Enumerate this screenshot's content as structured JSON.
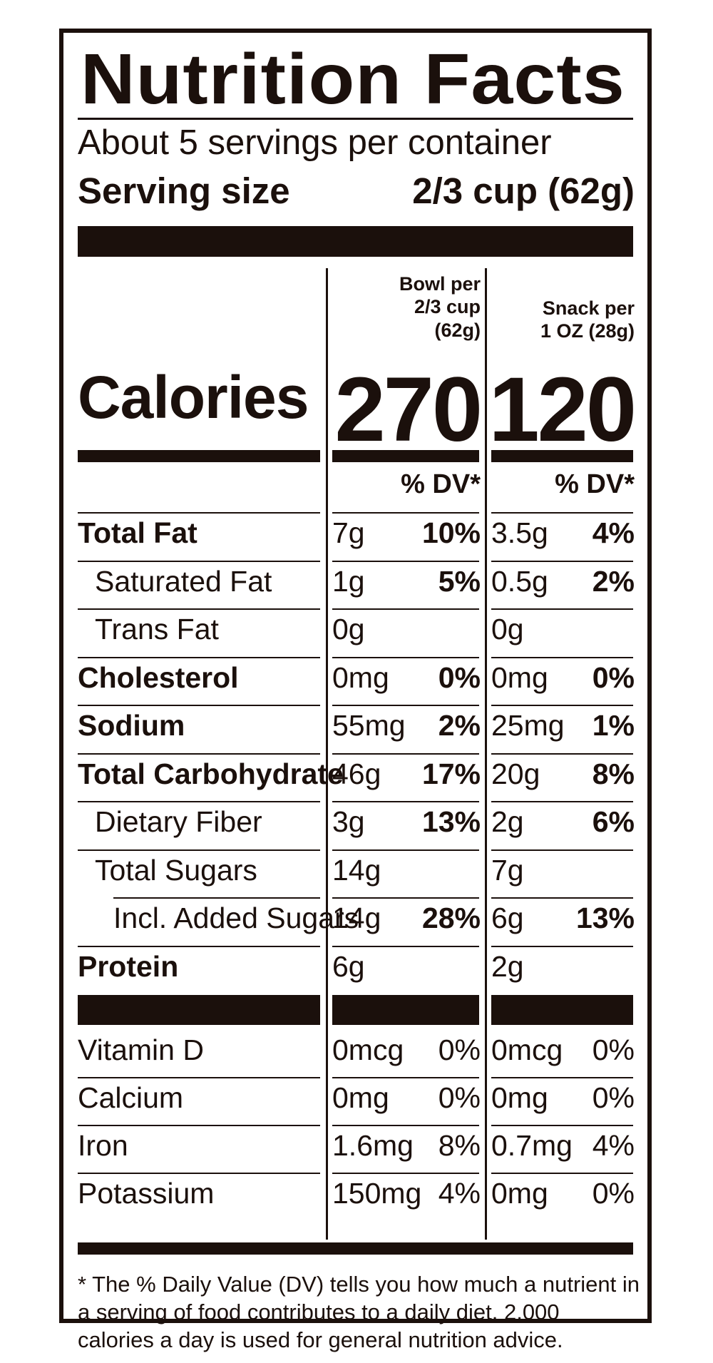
{
  "title": "Nutrition Facts",
  "servings_per_container": "About 5 servings per container",
  "serving_size_label": "Serving size",
  "serving_size_value": "2/3 cup (62g)",
  "columns": [
    {
      "header": [
        "Bowl per",
        "2/3 cup",
        "(62g)"
      ],
      "calories": "270",
      "dv_header": "% DV*"
    },
    {
      "header": [
        "Snack per",
        "1 OZ (28g)"
      ],
      "calories": "120",
      "dv_header": "% DV*"
    }
  ],
  "calories_label": "Calories",
  "nutrients": [
    {
      "name": "Total Fat",
      "bold": true,
      "indent": 0,
      "c1": [
        "7g",
        "10%"
      ],
      "c2": [
        "3.5g",
        "4%"
      ]
    },
    {
      "name": "Saturated Fat",
      "bold": false,
      "indent": 1,
      "c1": [
        "1g",
        "5%"
      ],
      "c2": [
        "0.5g",
        "2%"
      ]
    },
    {
      "name": "Trans Fat",
      "bold": false,
      "indent": 1,
      "c1": [
        "0g",
        ""
      ],
      "c2": [
        "0g",
        ""
      ]
    },
    {
      "name": "Cholesterol",
      "bold": true,
      "indent": 0,
      "c1": [
        "0mg",
        "0%"
      ],
      "c2": [
        "0mg",
        "0%"
      ]
    },
    {
      "name": "Sodium",
      "bold": true,
      "indent": 0,
      "c1": [
        "55mg",
        "2%"
      ],
      "c2": [
        "25mg",
        "1%"
      ]
    },
    {
      "name": "Total Carbohydrate",
      "bold": true,
      "indent": 0,
      "c1": [
        "46g",
        "17%"
      ],
      "c2": [
        "20g",
        "8%"
      ]
    },
    {
      "name": "Dietary Fiber",
      "bold": false,
      "indent": 1,
      "c1": [
        "3g",
        "13%"
      ],
      "c2": [
        "2g",
        "6%"
      ]
    },
    {
      "name": "Total Sugars",
      "bold": false,
      "indent": 1,
      "c1": [
        "14g",
        ""
      ],
      "c2": [
        "7g",
        ""
      ]
    },
    {
      "name": "Incl. Added Sugars",
      "bold": false,
      "indent": 2,
      "c1": [
        "14g",
        "28%"
      ],
      "c2": [
        "6g",
        "13%"
      ]
    },
    {
      "name": "Protein",
      "bold": true,
      "indent": 0,
      "c1": [
        "6g",
        ""
      ],
      "c2": [
        "2g",
        ""
      ]
    }
  ],
  "vitamins": [
    {
      "name": "Vitamin D",
      "c1": [
        "0mcg",
        "0%"
      ],
      "c2": [
        "0mcg",
        "0%"
      ]
    },
    {
      "name": "Calcium",
      "c1": [
        "0mg",
        "0%"
      ],
      "c2": [
        "0mg",
        "0%"
      ]
    },
    {
      "name": "Iron",
      "c1": [
        "1.6mg",
        "8%"
      ],
      "c2": [
        "0.7mg",
        "4%"
      ]
    },
    {
      "name": "Potassium",
      "c1": [
        "150mg",
        "4%"
      ],
      "c2": [
        "0mg",
        "0%"
      ]
    }
  ],
  "footnote": "* The % Daily Value (DV) tells you how much a nutrient in a serving of food contributes to a daily diet. 2,000 calories a day is used for general nutrition advice."
}
